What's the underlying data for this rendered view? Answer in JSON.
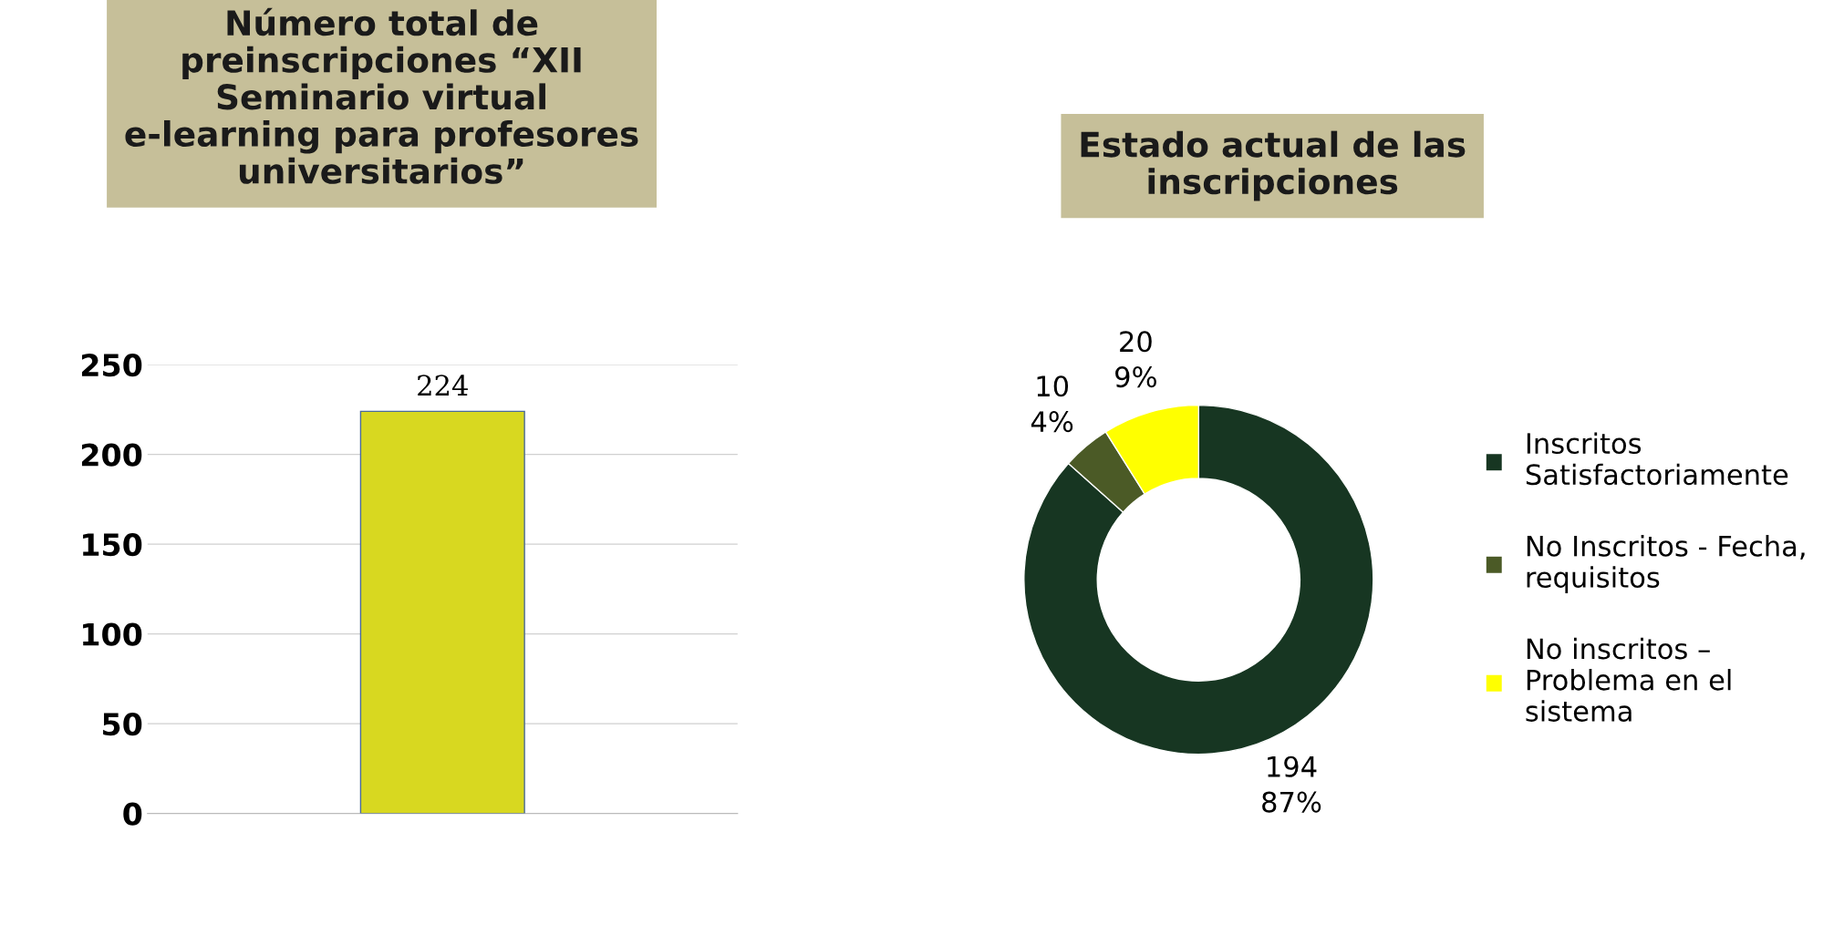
{
  "chart_data": [
    {
      "type": "bar",
      "title": "Número total de\npreinscripciones “XII\nSeminario virtual\ne-learning para profesores\nuniversitarios”",
      "categories": [
        null
      ],
      "values": [
        224
      ],
      "color": "#d8d820",
      "ylim": [
        0,
        250
      ],
      "yticks": [
        0,
        50,
        100,
        150,
        200,
        250
      ],
      "grid": "y",
      "data_labels": true,
      "tick_labels": "y"
    },
    {
      "type": "donut",
      "title": "Estado actual de las\ninscripciones",
      "categories": [
        "Inscritos\nSatisfactoriamente",
        "No Inscritos - Fecha,\nrequisitos",
        "No inscritos –\nProblema en el\nsistema"
      ],
      "values": [
        194,
        10,
        20
      ],
      "colors": [
        "#173622",
        "#4b5a26",
        "#ffff00"
      ],
      "value_labels": [
        "194\n87%",
        "10\n4%",
        "20\n9%"
      ],
      "legend": "right"
    }
  ]
}
